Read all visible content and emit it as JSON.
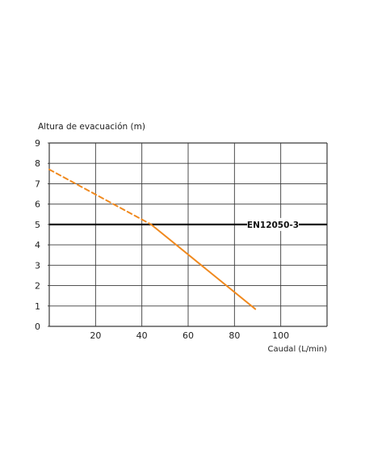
{
  "chart_data": {
    "type": "line",
    "title": "",
    "ylabel": "Altura de evacuación (m)",
    "xlabel": "Caudal (L/min)",
    "xlim": [
      0,
      120
    ],
    "ylim": [
      0,
      9
    ],
    "x_ticks": [
      20,
      40,
      60,
      80,
      100
    ],
    "y_ticks": [
      0,
      1,
      2,
      3,
      4,
      5,
      6,
      7,
      8,
      9
    ],
    "x_tick_labels": [
      "20",
      "40",
      "60",
      "80",
      "100"
    ],
    "y_tick_labels": [
      "0",
      "1",
      "2",
      "3",
      "4",
      "5",
      "6",
      "7",
      "8",
      "9"
    ],
    "grid": true,
    "series": [
      {
        "segments": [
          {
            "style": "dashed",
            "x": [
              0,
              44
            ],
            "y": [
              7.7,
              5.0
            ]
          },
          {
            "style": "solid",
            "x": [
              44,
              89
            ],
            "y": [
              5.0,
              0.85
            ]
          }
        ],
        "color": "#f0891e"
      }
    ],
    "reference_line": {
      "y": 5,
      "label": "EN12050-3",
      "color": "#111111"
    }
  }
}
